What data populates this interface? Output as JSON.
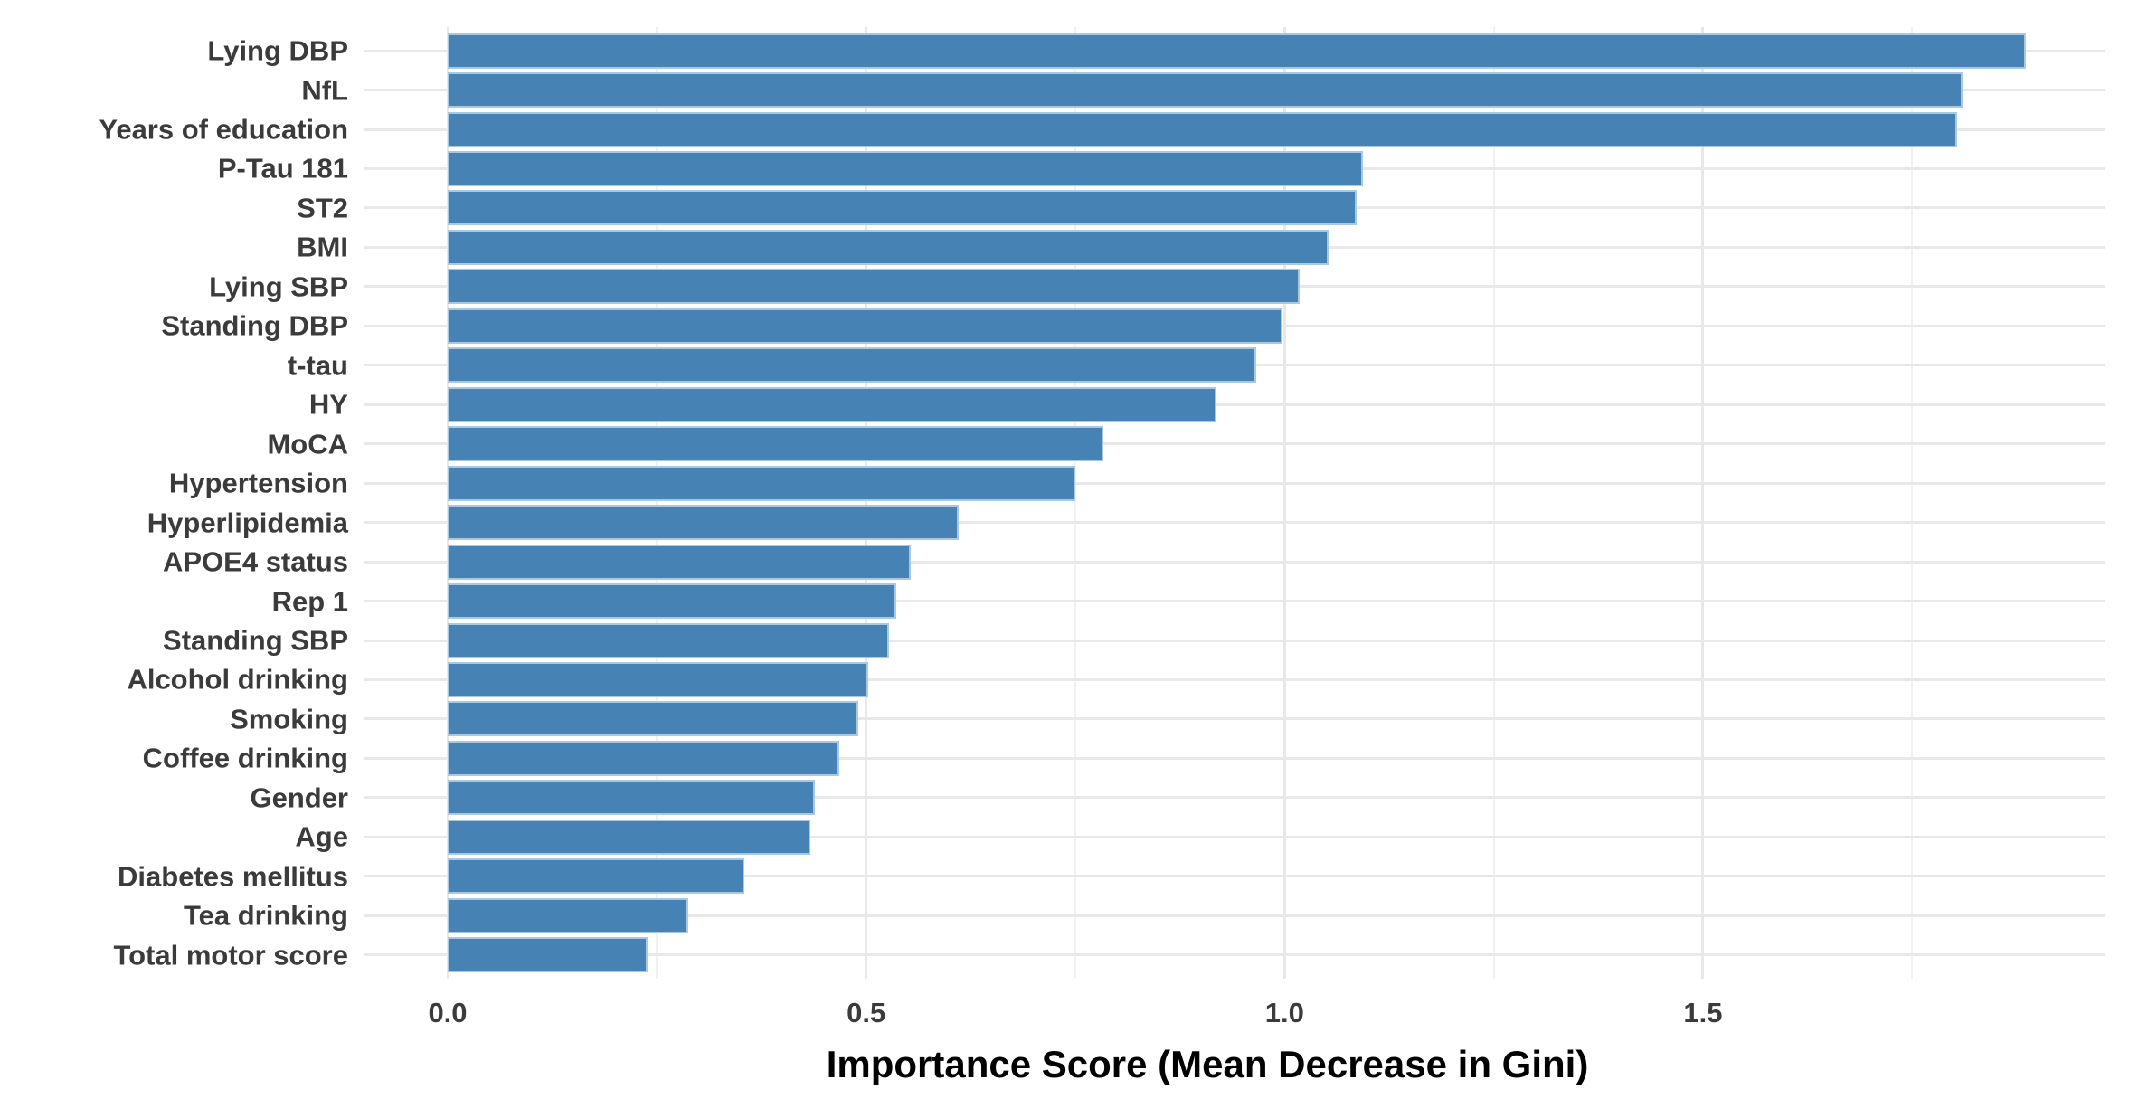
{
  "chart_data": {
    "type": "bar",
    "orientation": "horizontal",
    "title": "",
    "xlabel": "Importance Score (Mean Decrease in Gini)",
    "ylabel": "",
    "categories": [
      "Lying DBP",
      "NfL",
      "Years of education",
      "P-Tau 181",
      "ST2",
      "BMI",
      "Lying SBP",
      "Standing DBP",
      "t-tau",
      "HY",
      "MoCA",
      "Hypertension",
      "Hyperlipidemia",
      "APOE4 status",
      "Rep 1",
      "Standing SBP",
      "Alcohol drinking",
      "Smoking",
      "Coffee drinking",
      "Gender",
      "Age",
      "Diabetes mellitus",
      "Tea drinking",
      "Total motor score"
    ],
    "values": [
      1.886,
      1.81,
      1.804,
      1.094,
      1.086,
      1.053,
      1.018,
      0.998,
      0.966,
      0.919,
      0.784,
      0.75,
      0.611,
      0.553,
      0.536,
      0.527,
      0.503,
      0.491,
      0.468,
      0.439,
      0.433,
      0.354,
      0.287,
      0.239
    ],
    "x_ticks": [
      0.0,
      0.5,
      1.0,
      1.5
    ],
    "x_tick_labels": [
      "0.0",
      "0.5",
      "1.0",
      "1.5"
    ],
    "x_minor_ticks": [
      0.25,
      0.75,
      1.25,
      1.75
    ],
    "xlim": [
      -0.1,
      1.98
    ],
    "grid": "vertical major+minor, horizontal major at each category; no panel border",
    "legend": "none",
    "colors": {
      "bar_fill": "#4682B4",
      "bar_border": "#A9C8E1",
      "gridline_major": "#E8E8E8",
      "gridline_minor": "#F1F1F1",
      "axis_text": "#3B3B3B",
      "axis_title": "#000000",
      "background": "#FFFFFF"
    }
  }
}
